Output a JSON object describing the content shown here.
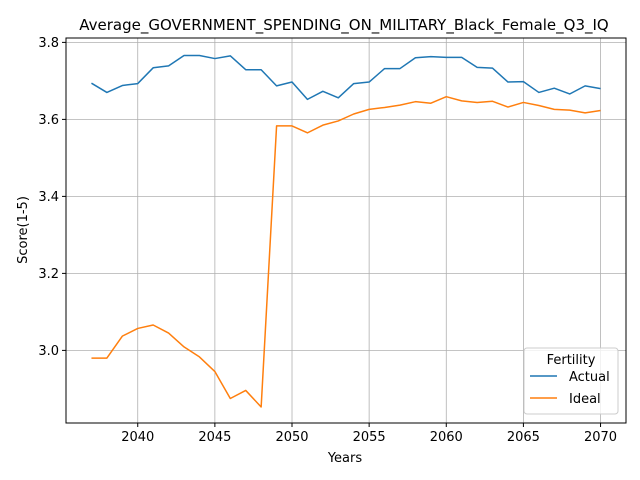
{
  "chart_data": {
    "type": "line",
    "title": "Average_GOVERNMENT_SPENDING_ON_MILITARY_Black_Female_Q3_IQ",
    "xlabel": "Years",
    "ylabel": "Score(1-5)",
    "xlim": [
      2035.35,
      2071.65
    ],
    "ylim": [
      2.8114,
      3.8114
    ],
    "xticks": [
      2040,
      2045,
      2050,
      2055,
      2060,
      2065,
      2070
    ],
    "yticks": [
      3.0,
      3.2,
      3.4,
      3.6,
      3.8
    ],
    "ytick_labels": [
      "3.0",
      "3.2",
      "3.4",
      "3.6",
      "3.8"
    ],
    "grid": true,
    "legend": {
      "title": "Fertility",
      "placement": "lower-right"
    },
    "x": [
      2037,
      2038,
      2039,
      2040,
      2041,
      2042,
      2043,
      2044,
      2045,
      2046,
      2047,
      2048,
      2049,
      2050,
      2051,
      2052,
      2053,
      2054,
      2055,
      2056,
      2057,
      2058,
      2059,
      2060,
      2061,
      2062,
      2063,
      2064,
      2065,
      2066,
      2067,
      2068,
      2069,
      2070
    ],
    "series": [
      {
        "name": "Actual",
        "color": "#1f77b4",
        "values": [
          3.694,
          3.67,
          3.688,
          3.693,
          3.734,
          3.739,
          3.766,
          3.766,
          3.758,
          3.765,
          3.729,
          3.729,
          3.687,
          3.697,
          3.652,
          3.673,
          3.656,
          3.693,
          3.697,
          3.732,
          3.732,
          3.76,
          3.763,
          3.761,
          3.761,
          3.735,
          3.733,
          3.697,
          3.698,
          3.67,
          3.681,
          3.666,
          3.687,
          3.68
        ]
      },
      {
        "name": "Ideal",
        "color": "#ff7f0e",
        "values": [
          2.98,
          2.98,
          3.037,
          3.057,
          3.066,
          3.045,
          3.009,
          2.983,
          2.945,
          2.875,
          2.896,
          2.853,
          3.583,
          3.583,
          3.565,
          3.585,
          3.596,
          3.614,
          3.626,
          3.631,
          3.637,
          3.646,
          3.642,
          3.659,
          3.648,
          3.644,
          3.647,
          3.632,
          3.644,
          3.636,
          3.626,
          3.624,
          3.617,
          3.623
        ]
      }
    ]
  }
}
